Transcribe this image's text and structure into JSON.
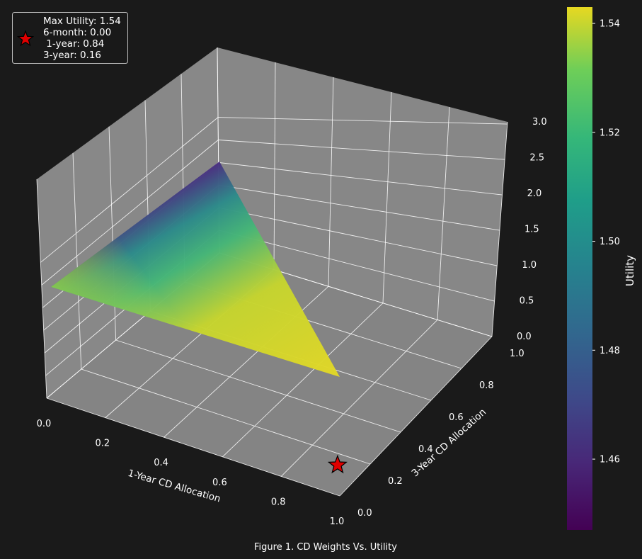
{
  "chart_data": {
    "type": "surface3d",
    "caption": "Figure 1. CD Weights Vs. Utility",
    "xlabel": "1-Year CD Allocation",
    "ylabel": "3-Year CD Allocation",
    "zlabel": "",
    "xlim": [
      0,
      1
    ],
    "ylim": [
      0,
      1
    ],
    "zlim": [
      0,
      3
    ],
    "xticks": [
      "0.0",
      "0.2",
      "0.4",
      "0.6",
      "0.8",
      "1.0"
    ],
    "yticks": [
      "0.0",
      "0.2",
      "0.4",
      "0.6",
      "0.8",
      "1.0"
    ],
    "zticks": [
      "0.0",
      "0.5",
      "1.0",
      "1.5",
      "2.0",
      "2.5",
      "3.0"
    ],
    "surface": {
      "domain": "x + y <= 1",
      "corners": [
        {
          "x": 1.0,
          "y": 0.0,
          "utility": 1.54
        },
        {
          "x": 0.0,
          "y": 0.0,
          "utility": 1.53
        },
        {
          "x": 0.0,
          "y": 1.0,
          "utility": 1.45
        }
      ],
      "colormap": "viridis"
    },
    "colorbar": {
      "label": "Utility",
      "range": [
        1.447,
        1.543
      ],
      "ticks": [
        "1.46",
        "1.48",
        "1.50",
        "1.52",
        "1.54"
      ]
    },
    "optimum": {
      "marker": "star",
      "color": "#e00000",
      "x": 0.84,
      "y": 0.16,
      "z": 0
    },
    "legend": {
      "placement": "top-left",
      "lines": [
        "Max Utility: 1.54",
        "6-month: 0.00",
        " 1-year: 0.84",
        "3-year: 0.16"
      ]
    }
  },
  "colors": {
    "background": "#1a1a1a",
    "pane": "#858585",
    "grid": "#ffffff",
    "text": "#ffffff",
    "star": "#e00000"
  }
}
